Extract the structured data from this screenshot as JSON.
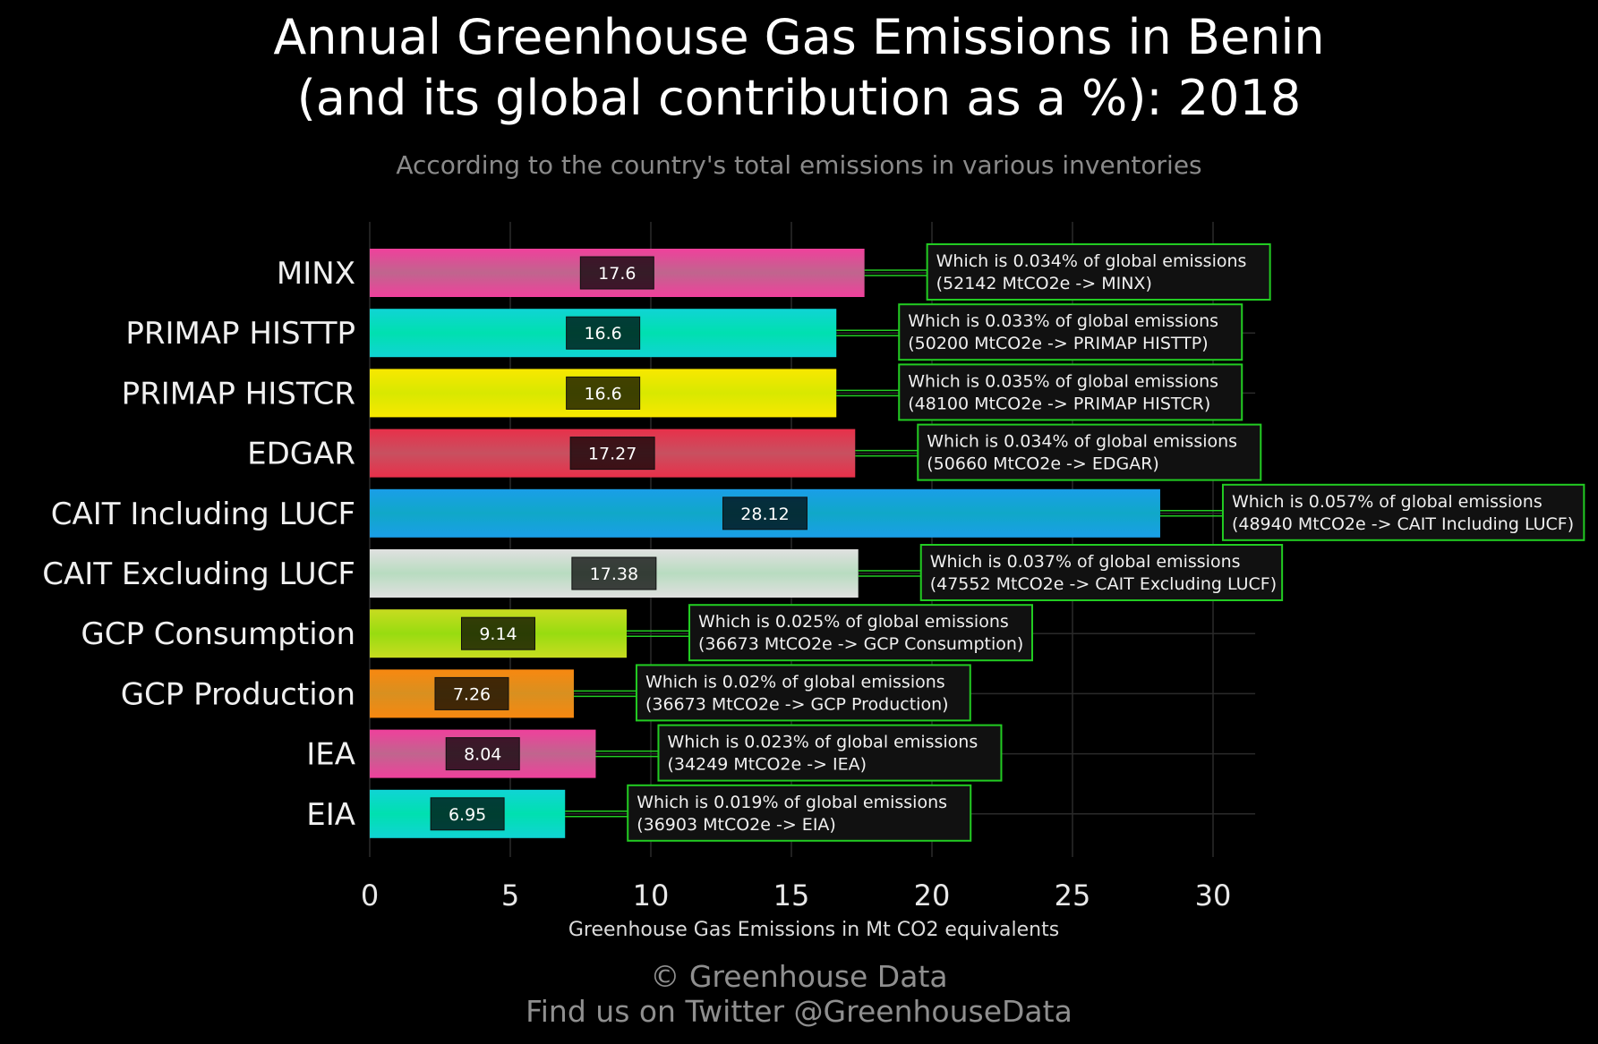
{
  "header": {
    "title_line1": "Annual Greenhouse Gas Emissions in Benin",
    "title_line2": "(and its global contribution as a %): 2018",
    "subtitle": "According to the country's total emissions in various inventories"
  },
  "footer": {
    "copyright": "© Greenhouse Data",
    "twitter": "Find us on Twitter @GreenhouseData"
  },
  "chart_data": {
    "type": "bar",
    "orientation": "horizontal",
    "xlabel": "Greenhouse Gas Emissions in Mt CO2 equivalents",
    "ylabel": "",
    "xlim": [
      0,
      31.5
    ],
    "xticks": [
      0,
      5,
      10,
      15,
      20,
      25,
      30
    ],
    "grid": true,
    "categories": [
      "MINX",
      "PRIMAP HISTTP",
      "PRIMAP HISTCR",
      "EDGAR",
      "CAIT Including LUCF",
      "CAIT Excluding LUCF",
      "GCP Consumption",
      "GCP Production",
      "IEA",
      "EIA"
    ],
    "values": [
      17.6,
      16.6,
      16.6,
      17.27,
      28.12,
      17.38,
      9.14,
      7.26,
      8.04,
      6.95
    ],
    "value_labels": [
      "17.6",
      "16.6",
      "16.6",
      "17.27",
      "28.12",
      "17.38",
      "9.14",
      "7.26",
      "8.04",
      "6.95"
    ],
    "annotations": [
      {
        "line1": "Which is 0.034% of global emissions",
        "line2": "(52142 MtCO2e -> MINX)"
      },
      {
        "line1": "Which is 0.033% of global emissions",
        "line2": "(50200 MtCO2e -> PRIMAP HISTTP)"
      },
      {
        "line1": "Which is 0.035% of global emissions",
        "line2": "(48100 MtCO2e -> PRIMAP HISTCR)"
      },
      {
        "line1": "Which is 0.034% of global emissions",
        "line2": "(50660 MtCO2e -> EDGAR)"
      },
      {
        "line1": "Which is 0.057% of global emissions",
        "line2": "(48940 MtCO2e -> CAIT Including LUCF)"
      },
      {
        "line1": "Which is 0.037% of global emissions",
        "line2": "(47552 MtCO2e -> CAIT Excluding LUCF)"
      },
      {
        "line1": "Which is 0.025% of global emissions",
        "line2": "(36673 MtCO2e -> GCP Consumption)"
      },
      {
        "line1": "Which is 0.02% of global emissions",
        "line2": "(36673 MtCO2e -> GCP Production)"
      },
      {
        "line1": "Which is 0.023% of global emissions",
        "line2": "(34249 MtCO2e -> IEA)"
      },
      {
        "line1": "Which is 0.019% of global emissions",
        "line2": "(36903 MtCO2e -> EIA)"
      }
    ],
    "bar_colors": [
      [
        "#f0409c",
        "#c0658e",
        "#f0409c"
      ],
      [
        "#10d4d4",
        "#00e0b0",
        "#10d4d4"
      ],
      [
        "#f8e800",
        "#d8e800",
        "#f8e800"
      ],
      [
        "#e8304a",
        "#c85060",
        "#e8304a"
      ],
      [
        "#1a9ee8",
        "#10a8c8",
        "#1a9ee8"
      ],
      [
        "#e0e0e0",
        "#b8dcc0",
        "#e0e0e0"
      ],
      [
        "#c8dc20",
        "#98dc10",
        "#c8dc20"
      ],
      [
        "#f88810",
        "#d89020",
        "#f88810"
      ],
      [
        "#f0409c",
        "#c0658e",
        "#f0409c"
      ],
      [
        "#10d4d4",
        "#00e0b0",
        "#10d4d4"
      ]
    ],
    "annotation_border_color": "#22cc22",
    "connector_color": "#22cc22"
  }
}
